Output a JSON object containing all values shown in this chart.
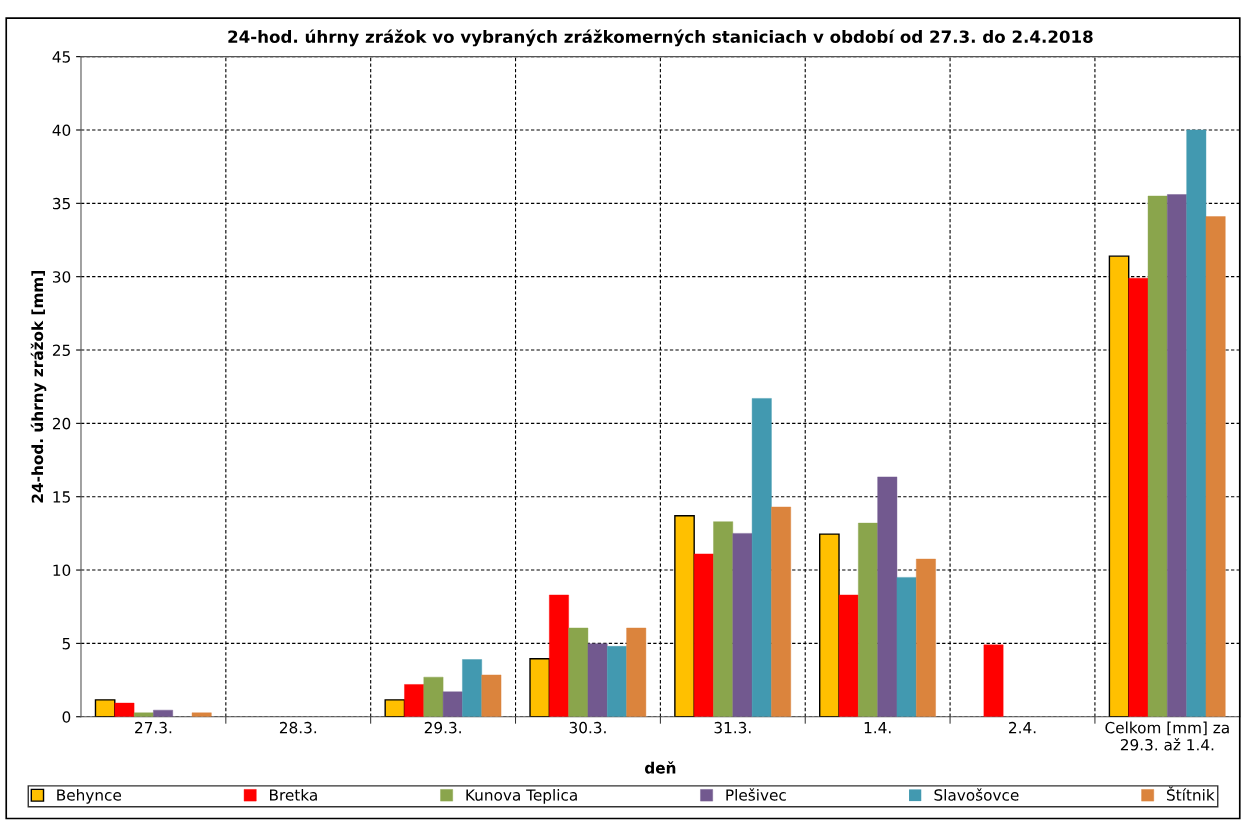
{
  "chart_data": {
    "type": "bar",
    "title": "24-hod. úhrny zrážok vo vybraných zrážkomerných staniciach v období od 27.3. do 2.4.2018",
    "xlabel": "deň",
    "ylabel": "24-hod. úhrny zrážok [mm]",
    "categories": [
      "27.3.",
      "28.3.",
      "29.3.",
      "30.3.",
      "31.3.",
      "1.4.",
      "2.4.",
      "Celkom [mm] za\n29.3. až 1.4."
    ],
    "series": [
      {
        "name": "Behynce",
        "color": "#ffc000",
        "values": [
          1.15,
          0,
          1.15,
          3.95,
          13.7,
          12.45,
          0,
          31.4
        ]
      },
      {
        "name": "Bretka",
        "color": "#ff0000",
        "values": [
          0.93,
          0,
          2.2,
          8.3,
          11.1,
          8.3,
          4.9,
          29.9
        ]
      },
      {
        "name": "Kunova Teplica",
        "color": "#8aa54c",
        "values": [
          0.27,
          0,
          2.7,
          6.05,
          13.3,
          13.2,
          0,
          35.5
        ]
      },
      {
        "name": "Plešivec",
        "color": "#72598f",
        "values": [
          0.45,
          0,
          1.7,
          4.98,
          12.5,
          16.35,
          0,
          35.6
        ]
      },
      {
        "name": "Slavošovce",
        "color": "#4299b0",
        "values": [
          0,
          0,
          3.9,
          4.8,
          21.7,
          9.5,
          0,
          40
        ]
      },
      {
        "name": "Štítnik",
        "color": "#db843d",
        "values": [
          0.27,
          0,
          2.85,
          6.05,
          14.3,
          10.75,
          0,
          34.1
        ]
      }
    ],
    "ylim": [
      0,
      45
    ],
    "yticks": [
      0,
      5,
      10,
      15,
      20,
      25,
      30,
      35,
      40,
      45
    ],
    "grid": true,
    "legend": "bottom"
  }
}
